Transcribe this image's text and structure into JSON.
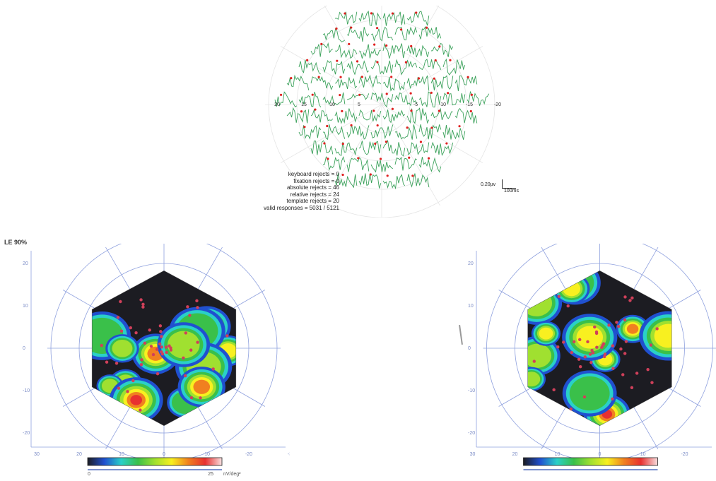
{
  "traces": {
    "x_axis_labels": [
      "20",
      "15",
      "10",
      "5",
      "-5",
      "-10",
      "-15",
      "-20"
    ],
    "stats": [
      "keyboard rejects = 0",
      "fixation rejects = 0",
      "absolute rejects = 46",
      "relative rejects = 24",
      "template rejects = 20",
      "valid responses = 5031 / 5121"
    ],
    "scale_amplitude": "0.20µv",
    "scale_time": "100ms",
    "trace_color": "#3aa15a",
    "marker_color": "#e02020"
  },
  "left_cut_label": "LE 90%",
  "chart_data": [
    {
      "type": "heatmap",
      "title": "",
      "xlabel": "",
      "ylabel": "",
      "x_ticks": [
        "30",
        "20",
        "10",
        "0",
        "-10",
        "-20",
        "-30"
      ],
      "y_ticks": [
        "20",
        "10",
        "0",
        "-10",
        "-20"
      ],
      "colorbar_min": "0",
      "colorbar_max": "25",
      "colorbar_unit": "nV/deg²",
      "grid": true,
      "colors": [
        "#1c1c22",
        "#2050d0",
        "#2ad0c8",
        "#3ac04a",
        "#a0e030",
        "#f8f020",
        "#f08020",
        "#e83030",
        "#f8e0e0"
      ]
    },
    {
      "type": "heatmap",
      "title": "",
      "xlabel": "",
      "ylabel": "",
      "x_ticks": [
        "30",
        "20",
        "10",
        "0",
        "-10",
        "-20",
        "-30"
      ],
      "y_ticks": [
        "20",
        "10",
        "0",
        "-10",
        "-20"
      ],
      "colorbar_min": "",
      "colorbar_max": "",
      "colorbar_unit": "",
      "grid": true,
      "colors": [
        "#1c1c22",
        "#2050d0",
        "#2ad0c8",
        "#3ac04a",
        "#a0e030",
        "#f8f020",
        "#f08020",
        "#e83030",
        "#f8e0e0"
      ]
    }
  ]
}
